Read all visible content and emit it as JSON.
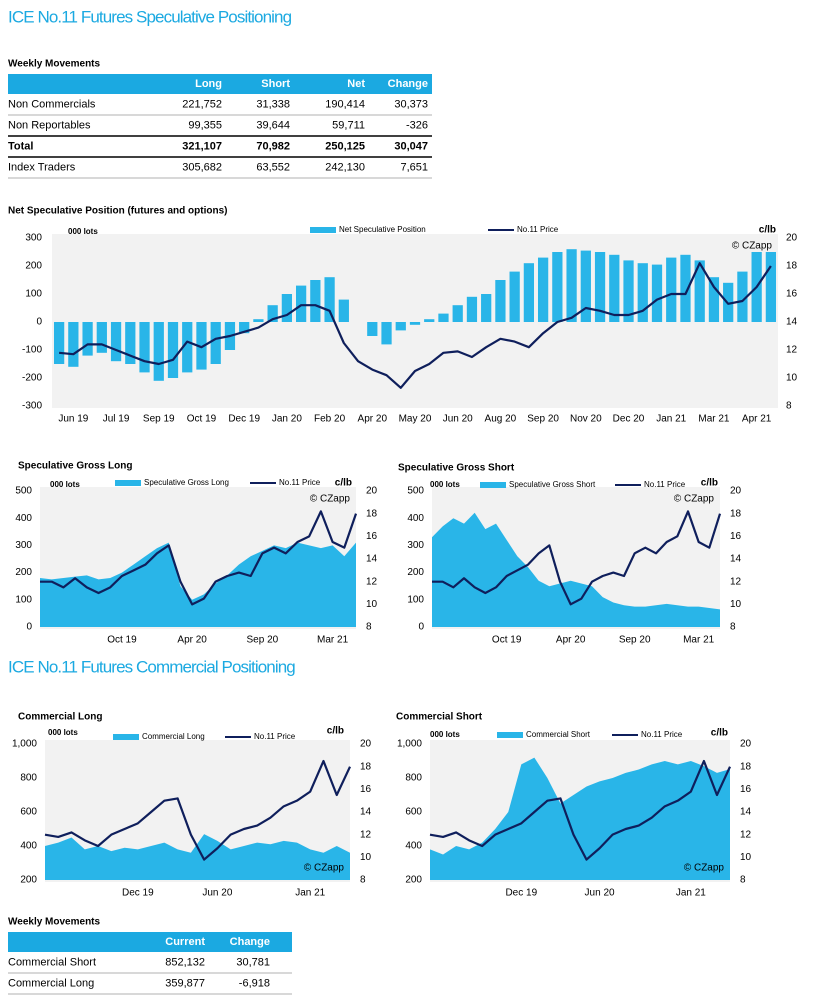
{
  "header": {
    "title": "ICE No.11 Futures Speculative Positioning"
  },
  "spec_table": {
    "title": "Weekly Movements",
    "columns": [
      "Long",
      "Short",
      "Net",
      "Change"
    ],
    "rows": [
      {
        "label": "Non Commercials",
        "values": [
          "221,752",
          "31,338",
          "190,414",
          "30,373"
        ]
      },
      {
        "label": "Non Reportables",
        "values": [
          "99,355",
          "39,644",
          "59,711",
          "-326"
        ]
      },
      {
        "label": "Total",
        "values": [
          "321,107",
          "70,982",
          "250,125",
          "30,047"
        ],
        "bold": true
      },
      {
        "label": "Index Traders",
        "values": [
          "305,682",
          "63,552",
          "242,130",
          "7,651"
        ]
      }
    ]
  },
  "chart_data": [
    {
      "type": "bar_line",
      "title": "Net Speculative Position (futures and options)",
      "y_label": "000 lots",
      "y2_label": "c/lb",
      "note": "© CZapp",
      "note_corner": "top-right",
      "background": "#f2f2f2",
      "categories": [
        null,
        "Jun 19",
        null,
        null,
        "Jul 19",
        null,
        null,
        "Sep 19",
        null,
        null,
        "Oct 19",
        null,
        null,
        "Dec 19",
        null,
        null,
        "Jan 20",
        null,
        null,
        "Feb 20",
        null,
        null,
        "Apr 20",
        null,
        null,
        "May 20",
        null,
        null,
        "Jun 20",
        null,
        null,
        "Aug 20",
        null,
        null,
        "Sep 20",
        null,
        null,
        "Nov 20",
        null,
        null,
        "Dec 20",
        null,
        null,
        "Jan 21",
        null,
        null,
        "Mar 21",
        null,
        null,
        "Apr 21",
        null
      ],
      "series": [
        {
          "name": "Net Speculative Position",
          "color": "#29b5e8",
          "axis": "y",
          "values": [
            -150,
            -160,
            -120,
            -110,
            -140,
            -150,
            -180,
            -210,
            -200,
            -180,
            -170,
            -150,
            -100,
            -40,
            10,
            60,
            100,
            130,
            150,
            160,
            80,
            0,
            -50,
            -80,
            -30,
            -10,
            10,
            30,
            60,
            90,
            100,
            150,
            180,
            210,
            230,
            250,
            260,
            255,
            250,
            240,
            220,
            210,
            205,
            230,
            240,
            220,
            160,
            140,
            180,
            250,
            250
          ]
        },
        {
          "name": "No.11 Price",
          "color": "#0f1f5c",
          "axis": "y2",
          "values": [
            11.8,
            11.7,
            12.4,
            12.4,
            12.0,
            11.6,
            11.2,
            11.0,
            11.3,
            12.6,
            12.2,
            12.8,
            13.0,
            13.3,
            13.6,
            14.2,
            14.5,
            15.2,
            15.2,
            14.8,
            12.5,
            11.2,
            10.6,
            10.2,
            9.3,
            10.5,
            11.0,
            11.8,
            11.9,
            11.5,
            12.2,
            12.8,
            12.6,
            12.2,
            13.2,
            14.0,
            14.3,
            15.0,
            14.8,
            14.5,
            14.5,
            14.8,
            15.6,
            16.0,
            16.0,
            18.2,
            16.5,
            15.3,
            15.5,
            16.5,
            18.0
          ]
        }
      ],
      "ylim": [
        -300,
        300
      ],
      "yticks": [
        -300,
        -200,
        -100,
        0,
        100,
        200,
        300
      ],
      "y2lim": [
        8,
        20
      ],
      "y2ticks": [
        8,
        10,
        12,
        14,
        16,
        18,
        20
      ]
    },
    {
      "type": "area_line",
      "title": "Speculative Gross Long",
      "y_label": "000 lots",
      "y2_label": "c/lb",
      "note": "© CZapp",
      "note_corner": "top-right",
      "background": "#f2f2f2",
      "categories": [
        null,
        null,
        null,
        null,
        null,
        null,
        null,
        "Oct 19",
        null,
        null,
        null,
        null,
        null,
        "Apr 20",
        null,
        null,
        null,
        null,
        null,
        "Sep 20",
        null,
        null,
        null,
        null,
        null,
        "Mar 21",
        null,
        null
      ],
      "series": [
        {
          "name": "Speculative Gross Long",
          "color": "#29b5e8",
          "axis": "y",
          "values": [
            180,
            175,
            180,
            185,
            190,
            175,
            180,
            200,
            230,
            260,
            290,
            310,
            150,
            100,
            120,
            160,
            190,
            230,
            260,
            280,
            300,
            290,
            310,
            300,
            290,
            300,
            260,
            310
          ]
        },
        {
          "name": "No.11 Price",
          "color": "#0f1f5c",
          "axis": "y2",
          "values": [
            12,
            12,
            11.5,
            12.3,
            11.5,
            11,
            11.5,
            12.5,
            13,
            13.5,
            14.5,
            15.2,
            12,
            10,
            10.5,
            12,
            12.5,
            12.8,
            12.5,
            14.5,
            15,
            14.5,
            15.5,
            16,
            18.2,
            15.5,
            15,
            18
          ]
        }
      ],
      "ylim": [
        0,
        500
      ],
      "yticks": [
        0,
        100,
        200,
        300,
        400,
        500
      ],
      "y2lim": [
        8,
        20
      ],
      "y2ticks": [
        8,
        10,
        12,
        14,
        16,
        18,
        20
      ]
    },
    {
      "type": "area_line",
      "title": "Speculative Gross Short",
      "y_label": "000 lots",
      "y2_label": "c/lb",
      "note": "© CZapp",
      "note_corner": "top-right",
      "background": "#f2f2f2",
      "categories": [
        null,
        null,
        null,
        null,
        null,
        null,
        null,
        "Oct 19",
        null,
        null,
        null,
        null,
        null,
        "Apr 20",
        null,
        null,
        null,
        null,
        null,
        "Sep 20",
        null,
        null,
        null,
        null,
        null,
        "Mar 21",
        null,
        null
      ],
      "series": [
        {
          "name": "Speculative Gross Short",
          "color": "#29b5e8",
          "axis": "y",
          "values": [
            330,
            370,
            400,
            380,
            420,
            360,
            380,
            320,
            260,
            220,
            170,
            150,
            160,
            170,
            160,
            150,
            110,
            90,
            80,
            75,
            75,
            80,
            85,
            80,
            75,
            75,
            70,
            65
          ]
        },
        {
          "name": "No.11 Price",
          "color": "#0f1f5c",
          "axis": "y2",
          "values": [
            12,
            12,
            11.5,
            12.3,
            11.5,
            11,
            11.5,
            12.5,
            13,
            13.5,
            14.5,
            15.2,
            12,
            10,
            10.5,
            12,
            12.5,
            12.8,
            12.5,
            14.5,
            15,
            14.5,
            15.5,
            16,
            18.2,
            15.5,
            15,
            18
          ]
        }
      ],
      "ylim": [
        0,
        500
      ],
      "yticks": [
        0,
        100,
        200,
        300,
        400,
        500
      ],
      "y2lim": [
        8,
        20
      ],
      "y2ticks": [
        8,
        10,
        12,
        14,
        16,
        18,
        20
      ]
    },
    {
      "type": "area_line",
      "title": "Commercial Long",
      "y_label": "000 lots",
      "y2_label": "c/lb",
      "note": "© CZapp",
      "note_corner": "bottom-right",
      "background": "#f2f2f2",
      "categories": [
        null,
        null,
        null,
        null,
        null,
        null,
        null,
        "Dec 19",
        null,
        null,
        null,
        null,
        null,
        "Jun 20",
        null,
        null,
        null,
        null,
        null,
        null,
        "Jan 21",
        null,
        null,
        null
      ],
      "series": [
        {
          "name": "Commercial Long",
          "color": "#29b5e8",
          "axis": "y",
          "values": [
            400,
            420,
            450,
            380,
            400,
            370,
            390,
            380,
            400,
            420,
            380,
            360,
            470,
            430,
            380,
            400,
            420,
            410,
            430,
            420,
            380,
            360,
            400,
            360
          ]
        },
        {
          "name": "No.11 Price",
          "color": "#0f1f5c",
          "axis": "y2",
          "values": [
            12,
            11.8,
            12.2,
            11.5,
            11.0,
            12.0,
            12.5,
            13.0,
            14.0,
            15.0,
            15.2,
            12.0,
            9.8,
            10.8,
            12.0,
            12.5,
            12.8,
            13.5,
            14.5,
            15.0,
            15.8,
            18.5,
            15.5,
            18.0
          ]
        }
      ],
      "ylim": [
        200,
        1000
      ],
      "yticks": [
        200,
        400,
        600,
        800,
        {
          "value": 1000,
          "label": "1,000"
        }
      ],
      "y2lim": [
        8,
        20
      ],
      "y2ticks": [
        8,
        10,
        12,
        14,
        16,
        18,
        20
      ]
    },
    {
      "type": "area_line",
      "title": "Commercial Short",
      "y_label": "000 lots",
      "y2_label": "c/lb",
      "note": "© CZapp",
      "note_corner": "bottom-right",
      "background": "#f2f2f2",
      "categories": [
        null,
        null,
        null,
        null,
        null,
        null,
        null,
        "Dec 19",
        null,
        null,
        null,
        null,
        null,
        "Jun 20",
        null,
        null,
        null,
        null,
        null,
        null,
        "Jan 21",
        null,
        null,
        null
      ],
      "series": [
        {
          "name": "Commercial Short",
          "color": "#29b5e8",
          "axis": "y",
          "values": [
            380,
            350,
            400,
            380,
            420,
            500,
            600,
            880,
            920,
            800,
            650,
            700,
            750,
            780,
            800,
            830,
            850,
            880,
            900,
            880,
            900,
            870,
            830,
            852
          ]
        },
        {
          "name": "No.11 Price",
          "color": "#0f1f5c",
          "axis": "y2",
          "values": [
            12,
            11.8,
            12.2,
            11.5,
            11.0,
            12.0,
            12.5,
            13.0,
            14.0,
            15.0,
            15.2,
            12.0,
            9.8,
            10.8,
            12.0,
            12.5,
            12.8,
            13.5,
            14.5,
            15.0,
            15.8,
            18.5,
            15.5,
            18.0
          ]
        }
      ],
      "ylim": [
        200,
        1000
      ],
      "yticks": [
        200,
        400,
        600,
        800,
        {
          "value": 1000,
          "label": "1,000"
        }
      ],
      "y2lim": [
        8,
        20
      ],
      "y2ticks": [
        8,
        10,
        12,
        14,
        16,
        18,
        20
      ]
    }
  ],
  "section2": {
    "title": "ICE No.11 Futures Commercial Positioning"
  },
  "comm_table": {
    "title": "Weekly Movements",
    "columns": [
      "Current",
      "Change"
    ],
    "rows": [
      {
        "label": "Commercial Short",
        "values": [
          "852,132",
          "30,781"
        ]
      },
      {
        "label": "Commercial Long",
        "values": [
          "359,877",
          "-6,918"
        ]
      }
    ]
  }
}
